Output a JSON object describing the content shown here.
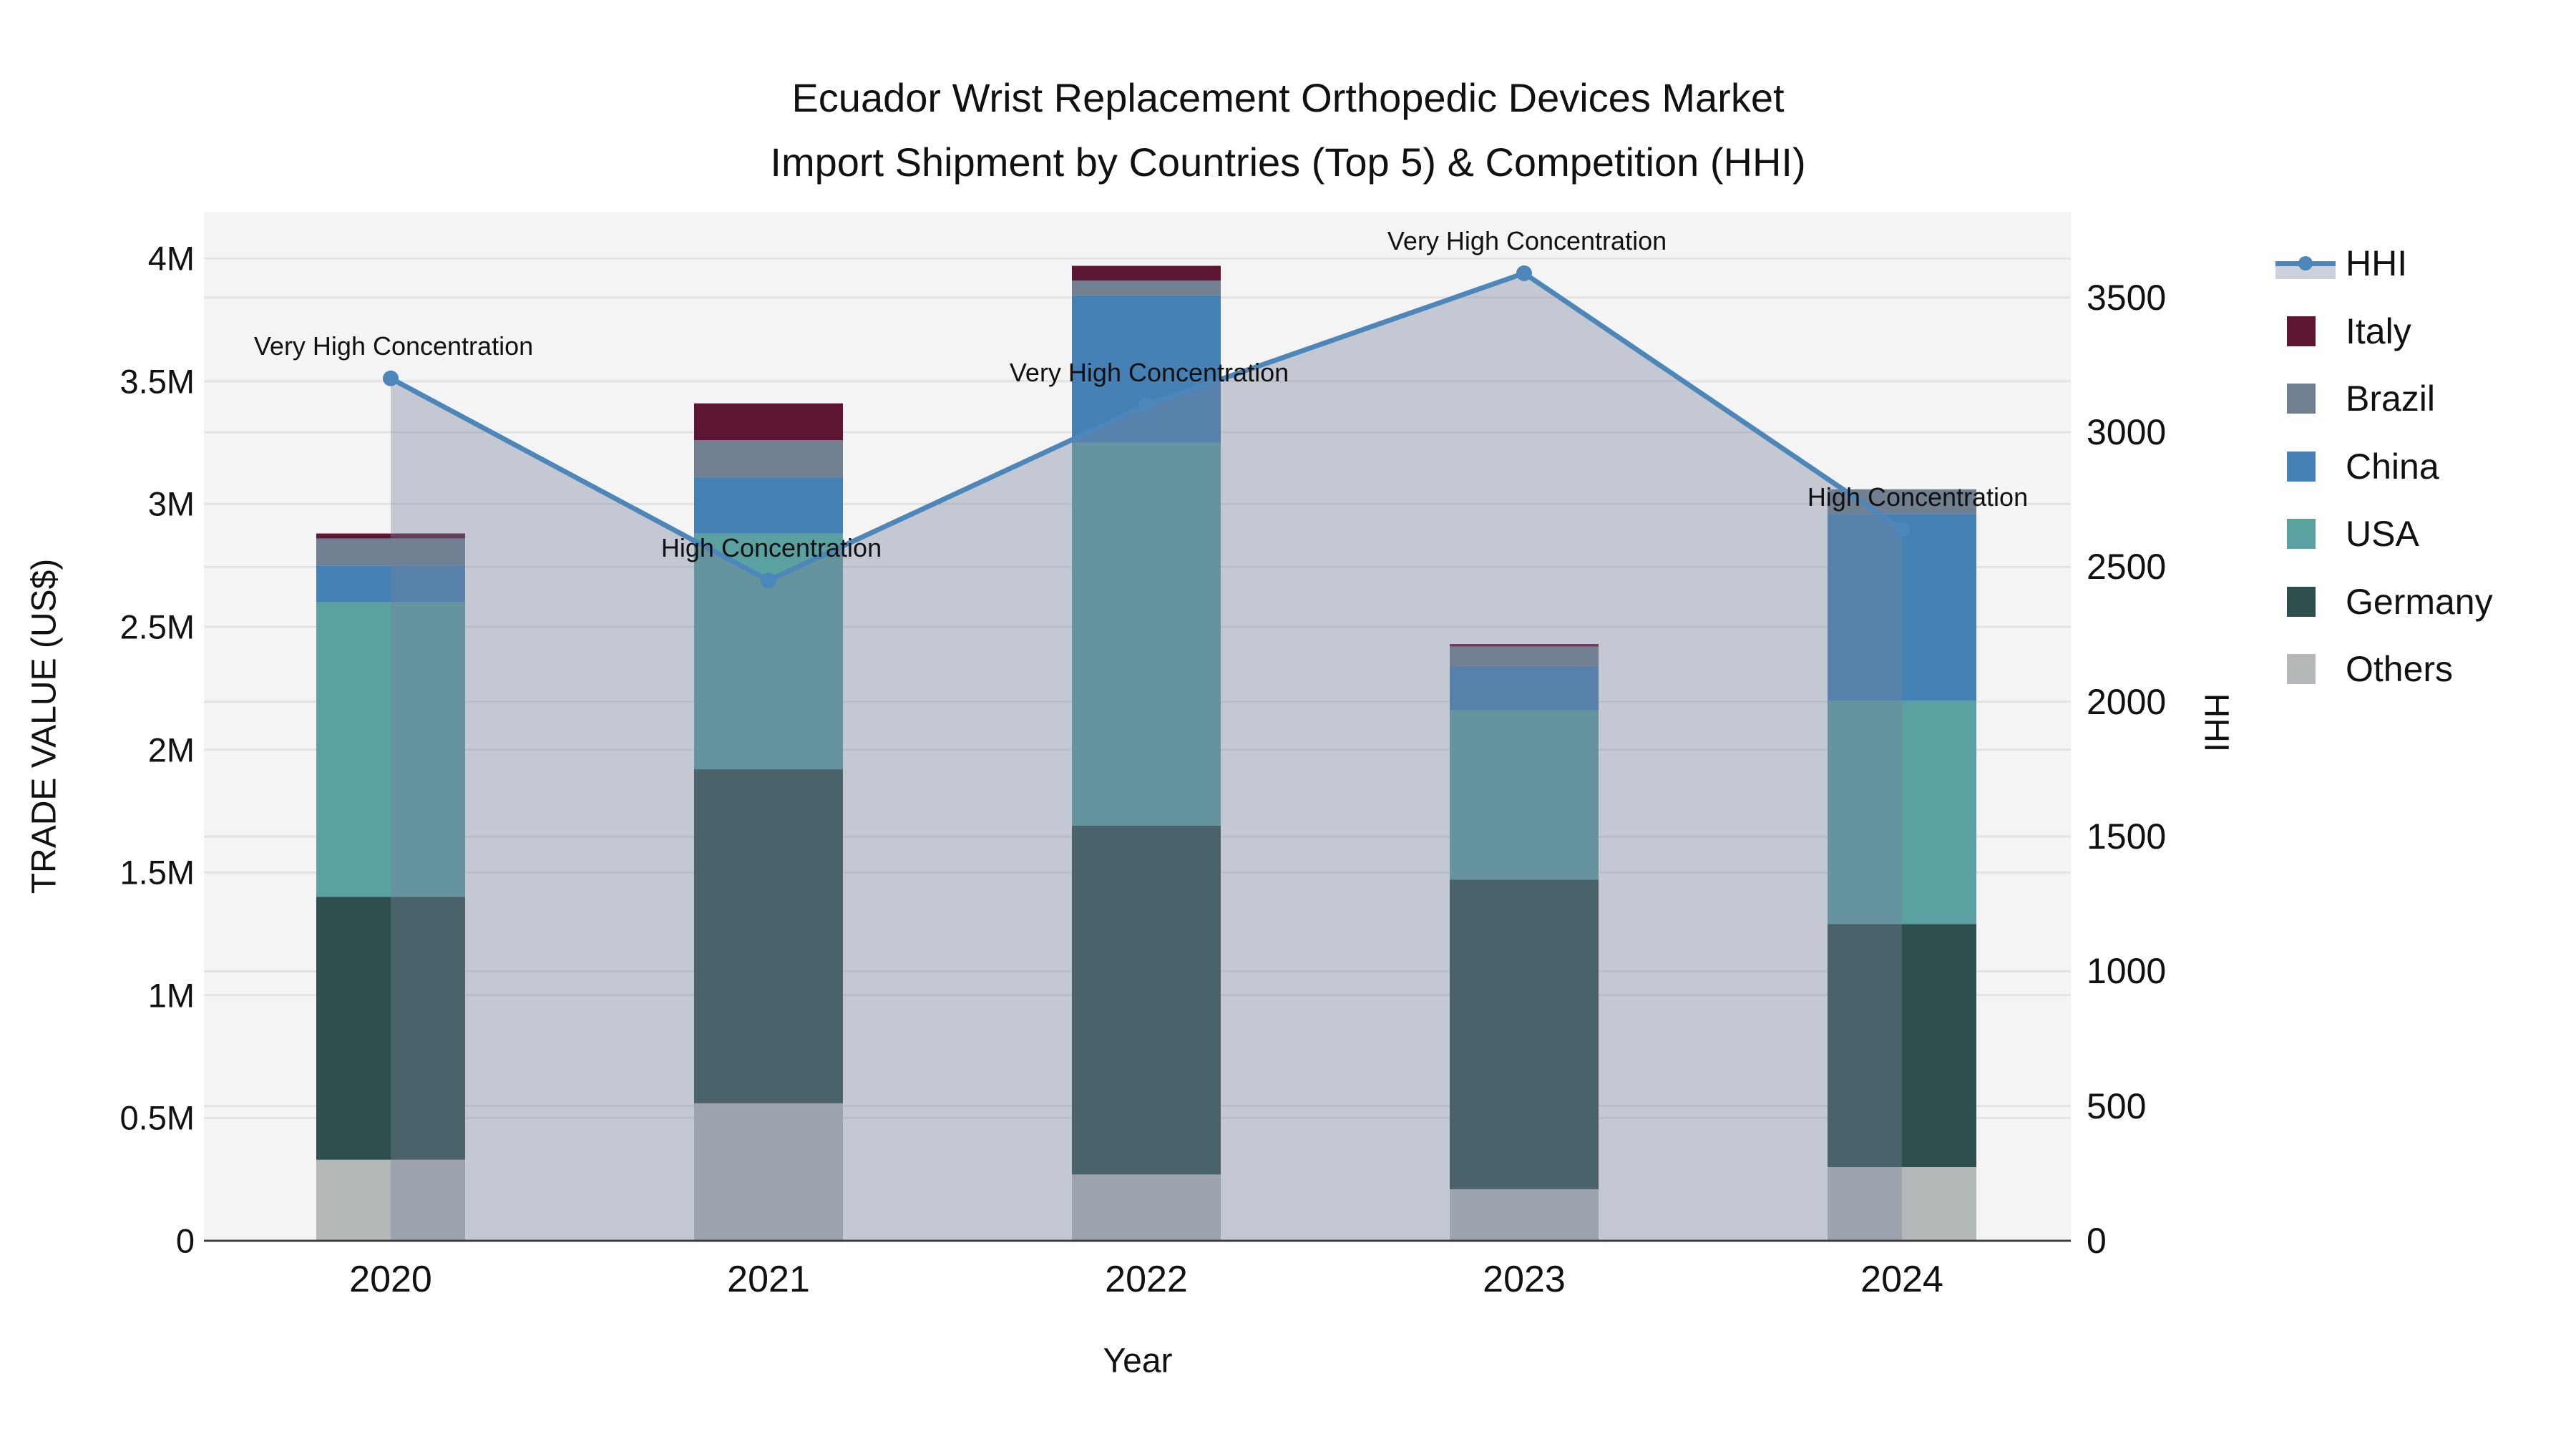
{
  "title": {
    "line1": "Ecuador Wrist Replacement Orthopedic Devices Market",
    "line2": "Import Shipment by Countries (Top 5) & Competition (HHI)"
  },
  "axes": {
    "x_title": "Year",
    "y_left_title": "TRADE VALUE (US$)",
    "y_right_title": "HHI",
    "x_ticks": [
      "2020",
      "2021",
      "2022",
      "2023",
      "2024"
    ],
    "y_left_ticks": [
      {
        "label": "0",
        "value": 0
      },
      {
        "label": "0.5M",
        "value": 0.5
      },
      {
        "label": "1M",
        "value": 1
      },
      {
        "label": "1.5M",
        "value": 1.5
      },
      {
        "label": "2M",
        "value": 2
      },
      {
        "label": "2.5M",
        "value": 2.5
      },
      {
        "label": "3M",
        "value": 3
      },
      {
        "label": "3.5M",
        "value": 3.5
      },
      {
        "label": "4M",
        "value": 4
      }
    ],
    "y_right_ticks": [
      {
        "label": "0",
        "value": 0
      },
      {
        "label": "500",
        "value": 500
      },
      {
        "label": "1000",
        "value": 1000
      },
      {
        "label": "1500",
        "value": 1500
      },
      {
        "label": "2000",
        "value": 2000
      },
      {
        "label": "2500",
        "value": 2500
      },
      {
        "label": "3000",
        "value": 3000
      },
      {
        "label": "3500",
        "value": 3500
      }
    ]
  },
  "legend": {
    "items": [
      {
        "label": "HHI",
        "type": "line",
        "color": "#4d86b8"
      },
      {
        "label": "Italy",
        "type": "box",
        "color": "#5d1634"
      },
      {
        "label": "Brazil",
        "type": "box",
        "color": "#708090"
      },
      {
        "label": "China",
        "type": "box",
        "color": "#4581b5"
      },
      {
        "label": "USA",
        "type": "box",
        "color": "#5ba1a2"
      },
      {
        "label": "Germany",
        "type": "box",
        "color": "#2f4f4e"
      },
      {
        "label": "Others",
        "type": "box",
        "color": "#b4b8b8"
      }
    ]
  },
  "chart_data": {
    "type": "bar",
    "subtype": "stacked-bar-with-line-overlay",
    "title": "Ecuador Wrist Replacement Orthopedic Devices Market Import Shipment by Countries (Top 5) & Competition (HHI)",
    "xlabel": "Year",
    "ylabel": "TRADE VALUE (US$)",
    "ylabel2": "HHI",
    "categories": [
      2020,
      2021,
      2022,
      2023,
      2024
    ],
    "series": [
      {
        "name": "Italy",
        "color": "#5d1634",
        "values_musd": [
          0.02,
          0.15,
          0.06,
          0.01,
          0.0
        ]
      },
      {
        "name": "Brazil",
        "color": "#708090",
        "values_musd": [
          0.11,
          0.15,
          0.06,
          0.08,
          0.1
        ]
      },
      {
        "name": "China",
        "color": "#4581b5",
        "values_musd": [
          0.15,
          0.23,
          0.6,
          0.18,
          0.76
        ]
      },
      {
        "name": "USA",
        "color": "#5ba1a2",
        "values_musd": [
          1.2,
          0.96,
          1.56,
          0.69,
          0.91
        ]
      },
      {
        "name": "Germany",
        "color": "#2f4f4e",
        "values_musd": [
          1.07,
          1.36,
          1.42,
          1.26,
          0.99
        ]
      },
      {
        "name": "Others",
        "color": "#b4b8b8",
        "values_musd": [
          0.33,
          0.56,
          0.27,
          0.21,
          0.3
        ]
      }
    ],
    "bar_totals_musd": [
      2.88,
      3.41,
      3.97,
      2.42,
      3.06
    ],
    "line_series": {
      "name": "HHI",
      "color": "#4d86b8",
      "area_fill": "rgba(119,130,152,0.38)",
      "values": [
        3200,
        2450,
        3100,
        3590,
        2640
      ]
    },
    "annotations": [
      "Very High Concentration",
      "High Concentration",
      "Very High Concentration",
      "Very High Concentration",
      "High Concentration"
    ],
    "ylim_musd": [
      0,
      4.19
    ],
    "ylim_hhi": [
      0,
      3818
    ],
    "grid": true,
    "legend_position": "right"
  },
  "colors": {
    "plot_background": "#f4f4f5",
    "gridline": "#e3e3e6",
    "axis_line": "#3f3f3f",
    "text": "#111111"
  }
}
